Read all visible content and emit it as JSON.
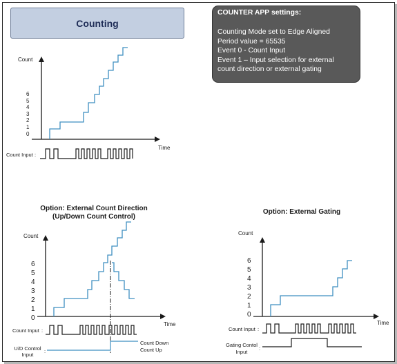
{
  "title": "Counting",
  "settings": {
    "header": "COUNTER APP settings:",
    "lines": [
      "Counting Mode set to Edge Aligned",
      "Period value = 65535",
      "Event 0 -  Count Input",
      "Event 1 – Input selection for external",
      "count direction or external gating"
    ]
  },
  "diagrams": {
    "counting": {
      "y_label": "Count",
      "x_label": "Time",
      "ticks": [
        "0",
        "1",
        "2",
        "3",
        "4",
        "5",
        "6"
      ],
      "signal_label": "Count Input"
    },
    "direction": {
      "title_line1": "Option: External Count Direction",
      "title_line2": "(Up/Down Count Control)",
      "y_label": "Count",
      "x_label": "Time",
      "ticks": [
        "0",
        "1",
        "2",
        "3",
        "4",
        "5",
        "6"
      ],
      "signal_label": "Count Input",
      "ud_label_line1": "U/D Control",
      "ud_label_line2": "Input",
      "count_down": "Count Down",
      "count_up": "Count Up"
    },
    "gating": {
      "title": "Option: External Gating",
      "y_label": "Count",
      "x_label": "Time",
      "ticks": [
        "0",
        "1",
        "2",
        "3",
        "4",
        "5",
        "6"
      ],
      "signal_label": "Count Input",
      "gating_label_line1": "Gating Contol",
      "gating_label_line2": "Input"
    }
  },
  "colors": {
    "curve": "#3f8fc1",
    "axis": "#1a1a1a",
    "title_box": "#c3cfe1",
    "settings_box": "#595959",
    "dashed": "#1a1a1a"
  }
}
